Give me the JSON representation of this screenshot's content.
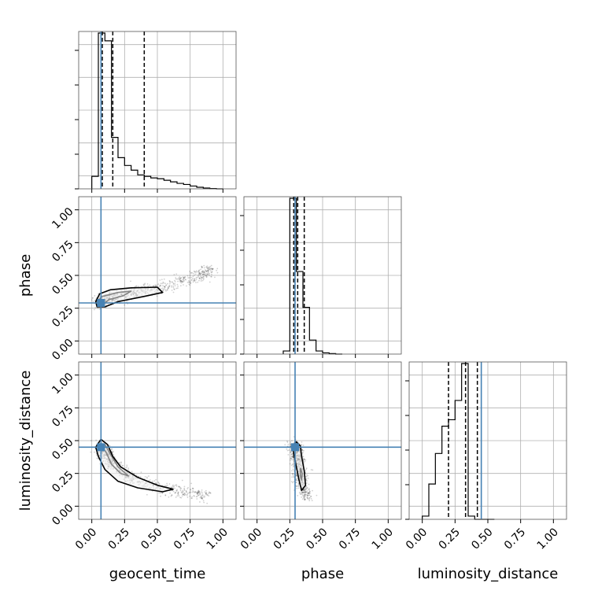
{
  "chart_data": {
    "type": "corner",
    "parameters": [
      "geocent_time",
      "phase",
      "luminosity_distance"
    ],
    "tick_values": [
      0.0,
      0.25,
      0.5,
      0.75,
      1.0
    ],
    "tick_labels": [
      "0.00",
      "0.25",
      "0.50",
      "0.75",
      "1.00"
    ],
    "axis_range": [
      -0.1,
      1.1
    ],
    "grid": true,
    "truth_color": "#4682b4",
    "truths": {
      "geocent_time": 0.07,
      "phase": 0.29,
      "luminosity_distance": 0.45
    },
    "histograms": [
      {
        "parameter": "geocent_time",
        "bin_edges": [
          0.0,
          0.05,
          0.1,
          0.15,
          0.2,
          0.25,
          0.3,
          0.35,
          0.4,
          0.45,
          0.5,
          0.55,
          0.6,
          0.65,
          0.7,
          0.75,
          0.8,
          0.85,
          0.9,
          0.95,
          1.0
        ],
        "counts": [
          0.08,
          1.0,
          0.95,
          0.33,
          0.2,
          0.15,
          0.12,
          0.09,
          0.08,
          0.07,
          0.065,
          0.055,
          0.045,
          0.035,
          0.028,
          0.018,
          0.01,
          0.005,
          0.002,
          0.0
        ],
        "quantiles": [
          0.08,
          0.16,
          0.4
        ]
      },
      {
        "parameter": "phase",
        "bin_edges": [
          0.2,
          0.25,
          0.3,
          0.35,
          0.4,
          0.45,
          0.5,
          0.55,
          0.6,
          0.65
        ],
        "counts": [
          0.02,
          1.0,
          0.53,
          0.3,
          0.09,
          0.02,
          0.008,
          0.003,
          0.0
        ],
        "quantiles": [
          0.28,
          0.31,
          0.36
        ]
      },
      {
        "parameter": "luminosity_distance",
        "bin_edges": [
          0.0,
          0.05,
          0.1,
          0.15,
          0.2,
          0.25,
          0.3,
          0.35,
          0.4,
          0.45,
          0.5,
          0.55
        ],
        "counts": [
          0.02,
          0.22,
          0.41,
          0.58,
          0.62,
          0.74,
          0.97,
          0.02,
          0.0,
          0.0,
          0.0
        ],
        "quantiles": [
          0.2,
          0.33,
          0.42
        ]
      }
    ],
    "scatter_panels": [
      {
        "x": "geocent_time",
        "y": "phase",
        "density_ridge": [
          [
            0.05,
            0.3
          ],
          [
            0.2,
            0.34
          ],
          [
            0.4,
            0.38
          ],
          [
            0.6,
            0.43
          ],
          [
            0.8,
            0.49
          ],
          [
            0.92,
            0.55
          ]
        ],
        "contours": [
          [
            [
              0.04,
              0.3
            ],
            [
              0.08,
              0.34
            ],
            [
              0.2,
              0.37
            ],
            [
              0.3,
              0.38
            ],
            [
              0.24,
              0.345
            ],
            [
              0.13,
              0.315
            ],
            [
              0.09,
              0.28
            ],
            [
              0.05,
              0.27
            ]
          ],
          [
            [
              0.03,
              0.3
            ],
            [
              0.06,
              0.36
            ],
            [
              0.14,
              0.39
            ],
            [
              0.3,
              0.405
            ],
            [
              0.5,
              0.41
            ],
            [
              0.54,
              0.37
            ],
            [
              0.4,
              0.34
            ],
            [
              0.2,
              0.3
            ],
            [
              0.1,
              0.26
            ],
            [
              0.04,
              0.26
            ]
          ]
        ]
      },
      {
        "x": "geocent_time",
        "y": "luminosity_distance",
        "density_ridge": [
          [
            0.06,
            0.46
          ],
          [
            0.15,
            0.33
          ],
          [
            0.3,
            0.22
          ],
          [
            0.5,
            0.14
          ],
          [
            0.7,
            0.11
          ],
          [
            0.9,
            0.08
          ]
        ],
        "contours": [
          [
            [
              0.06,
              0.47
            ],
            [
              0.11,
              0.41
            ],
            [
              0.15,
              0.32
            ],
            [
              0.22,
              0.25
            ],
            [
              0.28,
              0.23
            ],
            [
              0.2,
              0.3
            ],
            [
              0.14,
              0.4
            ],
            [
              0.1,
              0.47
            ]
          ],
          [
            [
              0.03,
              0.45
            ],
            [
              0.07,
              0.51
            ],
            [
              0.12,
              0.47
            ],
            [
              0.16,
              0.38
            ],
            [
              0.22,
              0.3
            ],
            [
              0.35,
              0.22
            ],
            [
              0.5,
              0.16
            ],
            [
              0.62,
              0.13
            ],
            [
              0.54,
              0.11
            ],
            [
              0.35,
              0.14
            ],
            [
              0.2,
              0.19
            ],
            [
              0.1,
              0.28
            ],
            [
              0.05,
              0.38
            ]
          ]
        ]
      },
      {
        "x": "phase",
        "y": "luminosity_distance",
        "density_ridge": [
          [
            0.29,
            0.46
          ],
          [
            0.31,
            0.35
          ],
          [
            0.33,
            0.24
          ],
          [
            0.35,
            0.14
          ],
          [
            0.38,
            0.08
          ]
        ],
        "contours": [
          [
            [
              0.33,
              0.29
            ],
            [
              0.345,
              0.25
            ],
            [
              0.34,
              0.2
            ],
            [
              0.33,
              0.24
            ]
          ],
          [
            [
              0.27,
              0.46
            ],
            [
              0.3,
              0.49
            ],
            [
              0.33,
              0.46
            ],
            [
              0.34,
              0.38
            ],
            [
              0.36,
              0.27
            ],
            [
              0.37,
              0.16
            ],
            [
              0.34,
              0.12
            ],
            [
              0.32,
              0.2
            ],
            [
              0.3,
              0.3
            ],
            [
              0.28,
              0.4
            ]
          ]
        ]
      }
    ]
  }
}
